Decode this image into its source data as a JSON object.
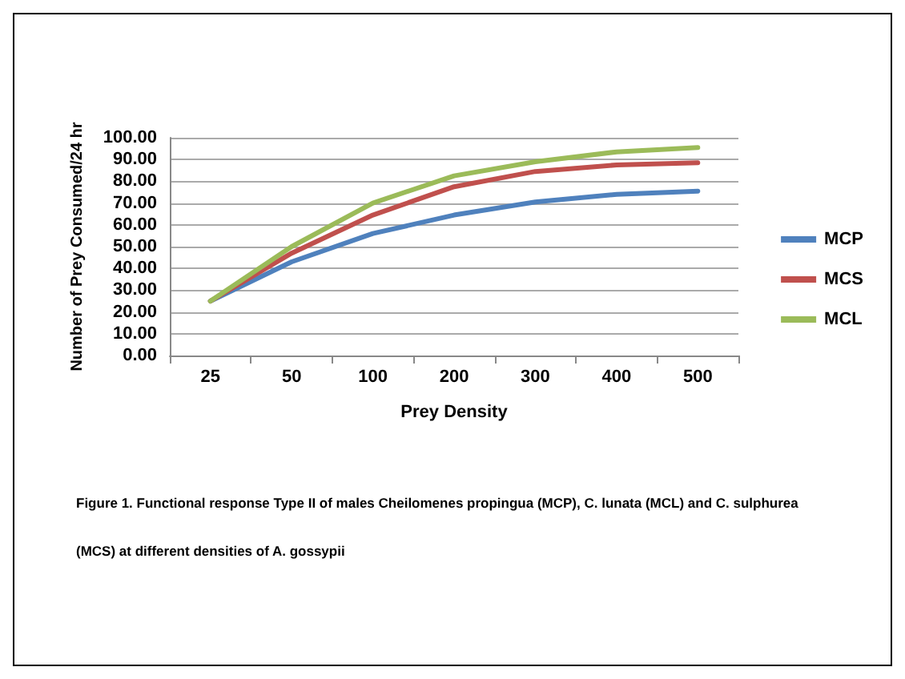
{
  "chart_data": {
    "type": "line",
    "xlabel": "Prey Density",
    "ylabel": "Number of Prey Consumed/24 hr",
    "categories": [
      "25",
      "50",
      "100",
      "200",
      "300",
      "400",
      "500"
    ],
    "series": [
      {
        "name": "MCP",
        "color": "#4f81bd",
        "values": [
          25,
          43,
          56,
          64.5,
          70.5,
          74,
          75.5
        ]
      },
      {
        "name": "MCS",
        "color": "#c0504d",
        "values": [
          25,
          47,
          64.5,
          77.5,
          84.5,
          87.5,
          88.5
        ]
      },
      {
        "name": "MCL",
        "color": "#9bbb59",
        "values": [
          25,
          50,
          70,
          82.5,
          89,
          93.5,
          95.5
        ]
      }
    ],
    "ylim": [
      0,
      100
    ],
    "yticks": [
      {
        "value": 0,
        "label": "0.00"
      },
      {
        "value": 10,
        "label": "10.00"
      },
      {
        "value": 20,
        "label": "20.00"
      },
      {
        "value": 30,
        "label": "30.00"
      },
      {
        "value": 40,
        "label": "40.00"
      },
      {
        "value": 50,
        "label": "50.00"
      },
      {
        "value": 60,
        "label": "60.00"
      },
      {
        "value": 70,
        "label": "70.00"
      },
      {
        "value": 80,
        "label": "80.00"
      },
      {
        "value": 90,
        "label": "90.00"
      },
      {
        "value": 100,
        "label": "100.00"
      }
    ],
    "grid": "y",
    "legend": "right",
    "marker": "none",
    "line_style": "solid",
    "annotations": [
      "Figure 1. Functional response Type II of males Cheilomenes propingua (MCP), C. lunata (MCL) and C. sulphurea (MCS) at different densities of A. gossypii"
    ]
  }
}
